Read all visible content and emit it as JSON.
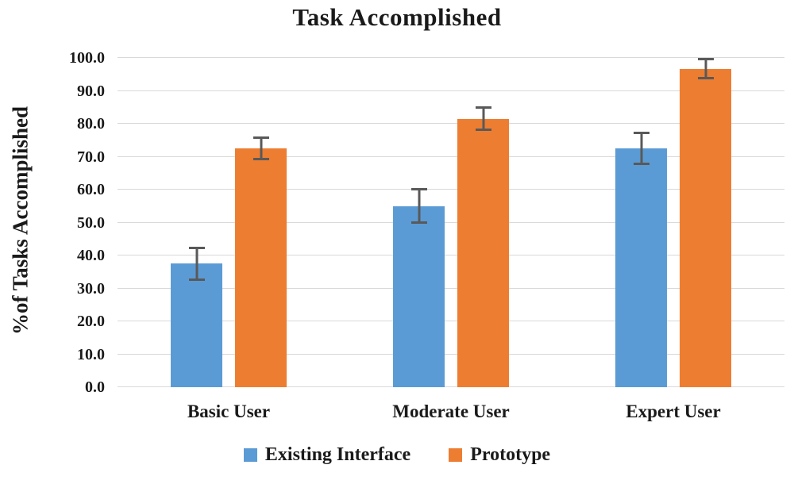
{
  "chart_data": {
    "type": "bar",
    "title": "Task Accomplished",
    "xlabel": "",
    "ylabel": "%of Tasks Accomplished",
    "categories": [
      "Basic User",
      "Moderate User",
      "Expert User"
    ],
    "series": [
      {
        "name": "Existing Interface",
        "color": "#5B9BD5",
        "values": [
          37.5,
          55.0,
          72.5
        ],
        "errors": [
          5.2,
          5.4,
          5.0
        ]
      },
      {
        "name": "Prototype",
        "color": "#ED7D31",
        "values": [
          72.5,
          81.5,
          96.7
        ],
        "errors": [
          3.7,
          3.7,
          3.3
        ]
      }
    ],
    "ylim": [
      0,
      100
    ],
    "ytick_step": 10,
    "ytick_labels": [
      "0.0",
      "10.0",
      "20.0",
      "30.0",
      "40.0",
      "50.0",
      "60.0",
      "70.0",
      "80.0",
      "90.0",
      "100.0"
    ],
    "grid": true,
    "gridline_color": "#D9D9D9",
    "errorbar_color": "#595959",
    "text_color": "#1A1A1A",
    "legend_position": "bottom"
  }
}
